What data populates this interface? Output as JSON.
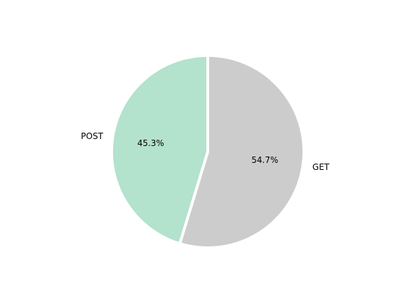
{
  "chart_data": {
    "type": "pie",
    "title": "",
    "start_angle_deg": 90,
    "direction": "clockwise",
    "slices": [
      {
        "label": "GET",
        "value": 54.7,
        "pct_label": "54.7%",
        "color": "#cccccc"
      },
      {
        "label": "POST",
        "value": 45.3,
        "pct_label": "45.3%",
        "color": "#b3e2cd"
      }
    ]
  }
}
